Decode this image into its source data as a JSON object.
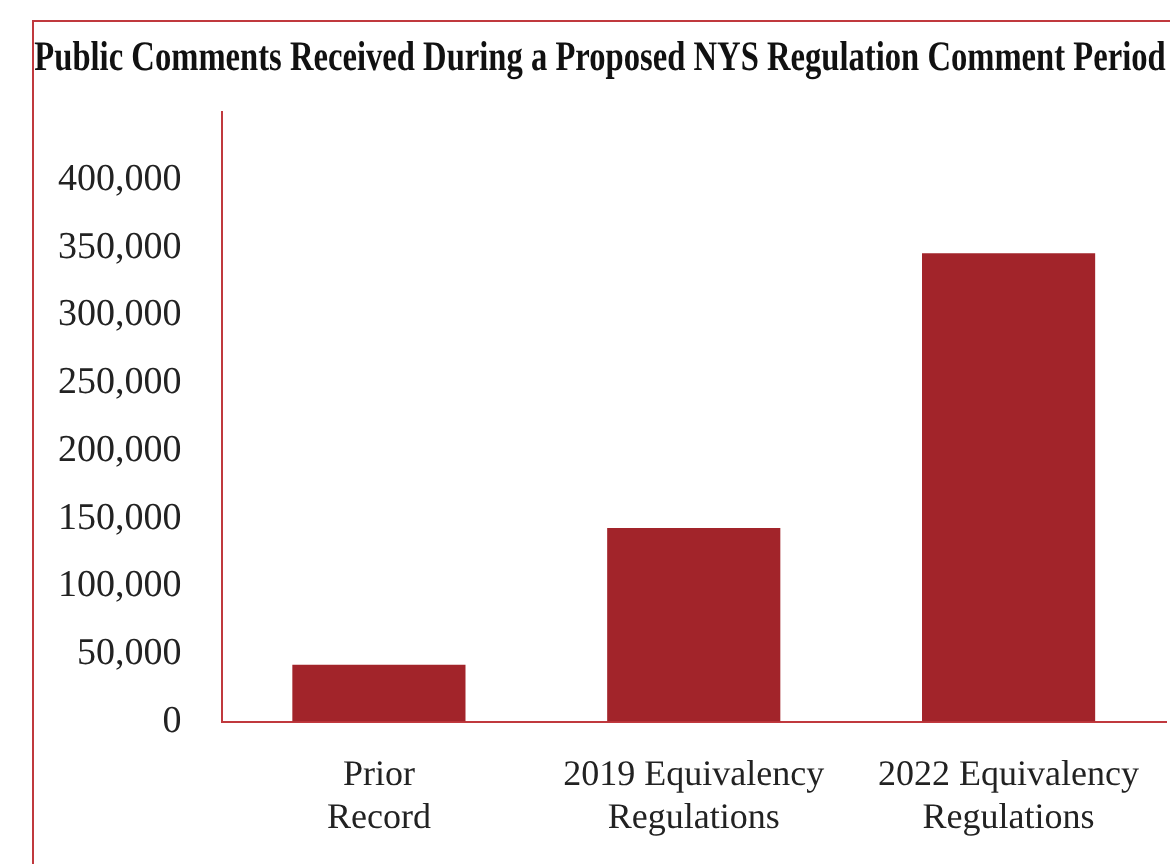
{
  "chart_data": {
    "type": "bar",
    "title": "Public Comments Received During a Proposed NYS Regulation Comment Period",
    "categories": [
      [
        "Prior",
        "Record"
      ],
      [
        "2019 Equivalency",
        "Regulations"
      ],
      [
        "2022 Equivalency",
        "Regulations"
      ]
    ],
    "values": [
      42000,
      143000,
      346000
    ],
    "color": "#a2242a",
    "ylim": [
      0,
      450000
    ],
    "yticks": [
      {
        "value": 0,
        "label": "0"
      },
      {
        "value": 50000,
        "label": "50,000"
      },
      {
        "value": 100000,
        "label": "100,000"
      },
      {
        "value": 150000,
        "label": "150,000"
      },
      {
        "value": 200000,
        "label": "200,000"
      },
      {
        "value": 250000,
        "label": "250,000"
      },
      {
        "value": 300000,
        "label": "300,000"
      },
      {
        "value": 350000,
        "label": "350,000"
      },
      {
        "value": 400000,
        "label": "400,000"
      }
    ],
    "grid": false,
    "legend": false
  }
}
